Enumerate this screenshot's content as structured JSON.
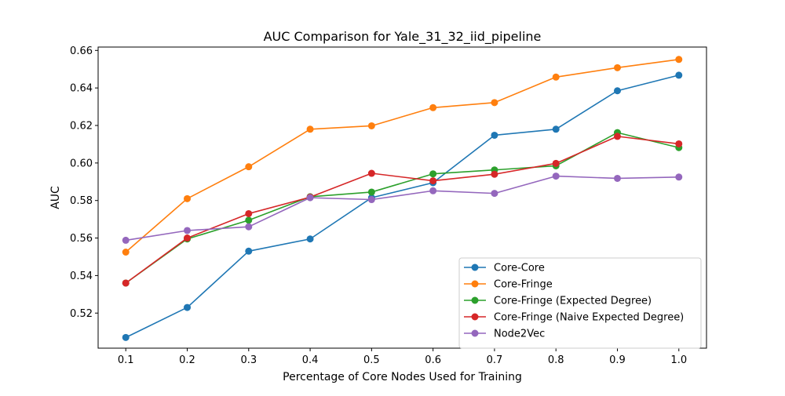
{
  "chart_data": {
    "type": "line",
    "title": "AUC Comparison for Yale_31_32_iid_pipeline",
    "xlabel": "Percentage of Core Nodes Used for Training",
    "ylabel": "AUC",
    "x": [
      0.1,
      0.2,
      0.3,
      0.4,
      0.5,
      0.6,
      0.7,
      0.8,
      0.9,
      1.0
    ],
    "x_tick_labels": [
      "0.1",
      "0.2",
      "0.3",
      "0.4",
      "0.5",
      "0.6",
      "0.7",
      "0.8",
      "0.9",
      "1.0"
    ],
    "xlim": [
      0.055,
      1.045
    ],
    "y_ticks": [
      0.52,
      0.54,
      0.56,
      0.58,
      0.6,
      0.62,
      0.64,
      0.66
    ],
    "y_tick_labels": [
      "0.52",
      "0.54",
      "0.56",
      "0.58",
      "0.60",
      "0.62",
      "0.64",
      "0.66"
    ],
    "ylim": [
      0.5013,
      0.6618
    ],
    "grid": false,
    "legend_position": "lower-right",
    "series": [
      {
        "name": "Core-Core",
        "color": "#1f77b4",
        "values": [
          0.507,
          0.523,
          0.553,
          0.5595,
          0.5815,
          0.5895,
          0.6148,
          0.618,
          0.6385,
          0.6468
        ]
      },
      {
        "name": "Core-Fringe",
        "color": "#ff7f0e",
        "values": [
          0.5525,
          0.581,
          0.598,
          0.618,
          0.6198,
          0.6295,
          0.6322,
          0.6458,
          0.6508,
          0.6552
        ]
      },
      {
        "name": "Core-Fringe (Expected Degree)",
        "color": "#2ca02c",
        "values": [
          0.536,
          0.5595,
          0.5695,
          0.582,
          0.5845,
          0.5942,
          0.5963,
          0.5985,
          0.6162,
          0.6082
        ]
      },
      {
        "name": "Core-Fringe (Naive Expected Degree)",
        "color": "#d62728",
        "values": [
          0.536,
          0.56,
          0.573,
          0.5818,
          0.5945,
          0.5905,
          0.594,
          0.5998,
          0.6142,
          0.6102
        ]
      },
      {
        "name": "Node2Vec",
        "color": "#9467bd",
        "values": [
          0.5588,
          0.564,
          0.566,
          0.5815,
          0.5805,
          0.5852,
          0.5838,
          0.593,
          0.5918,
          0.5925
        ]
      }
    ]
  }
}
